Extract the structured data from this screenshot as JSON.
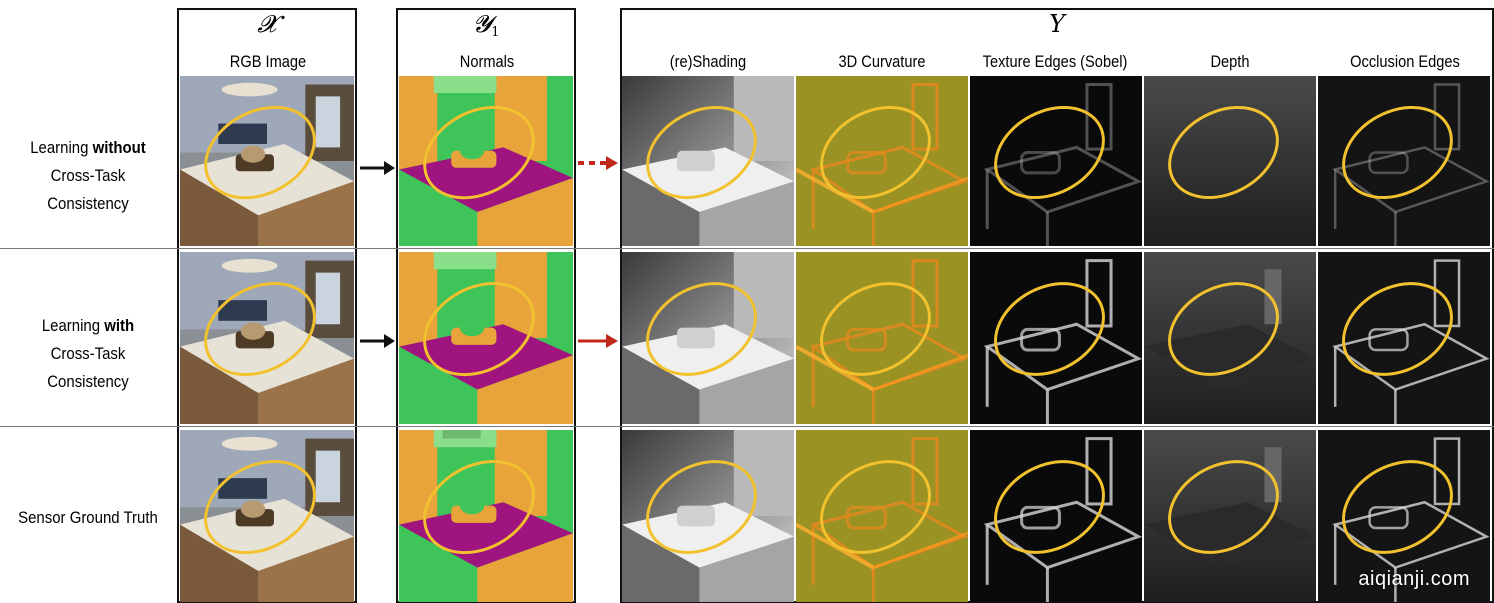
{
  "headers": {
    "x_symbol": "𝓧",
    "y1_symbol": "𝓨",
    "y1_sub": "1",
    "y_symbol": "Y",
    "rgb": "RGB Image",
    "normals": "Normals",
    "shading": "(re)Shading",
    "curvature": "3D Curvature",
    "texture": "Texture Edges (Sobel)",
    "depth": "Depth",
    "occlusion": "Occlusion Edges"
  },
  "rows": [
    {
      "line1_pre": "Learning ",
      "line1_bold": "without",
      "line2": "Cross-Task Consistency"
    },
    {
      "line1_pre": "Learning ",
      "line1_bold": "with",
      "line2": "Cross-Task Consistency"
    },
    {
      "line1_pre": "Sensor Ground Truth",
      "line1_bold": "",
      "line2": ""
    }
  ],
  "colors": {
    "ellipse": "#f2c12e",
    "arrow_black": "#111111",
    "arrow_red": "#c0281c",
    "normals_green": "#3fc45a",
    "normals_orange": "#e8a33a",
    "normals_magenta": "#a0147f",
    "curvature_olive": "#9a9222"
  },
  "watermark": "aiqianji.com"
}
